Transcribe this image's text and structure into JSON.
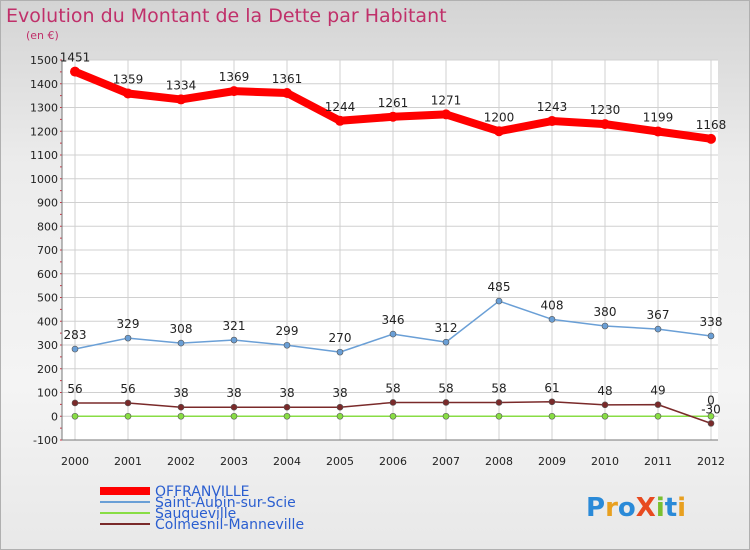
{
  "chart_data": {
    "type": "line",
    "title": "Evolution du Montant de la Dette par Habitant",
    "subtitle": "(en €)",
    "x": [
      "2000",
      "2001",
      "2002",
      "2003",
      "2004",
      "2005",
      "2006",
      "2007",
      "2008",
      "2009",
      "2010",
      "2011",
      "2012"
    ],
    "ylim": [
      -100,
      1500
    ],
    "yticks": [
      -100,
      0,
      100,
      200,
      300,
      400,
      500,
      600,
      700,
      800,
      900,
      1000,
      1100,
      1200,
      1300,
      1400,
      1500
    ],
    "grid": true,
    "legend_position": "bottom-left",
    "series": [
      {
        "name": "OFFRANVILLE",
        "values": [
          1451,
          1359,
          1334,
          1369,
          1361,
          1244,
          1261,
          1271,
          1200,
          1243,
          1230,
          1199,
          1168
        ],
        "labels": [
          "1451",
          "1359",
          "1334",
          "1369",
          "1361",
          "1244",
          "1261",
          "1271",
          "1200",
          "1243",
          "1230",
          "1199",
          "1168"
        ],
        "color": "#ff0000"
      },
      {
        "name": "Saint-Aubin-sur-Scie",
        "values": [
          283,
          329,
          308,
          321,
          299,
          270,
          346,
          312,
          485,
          408,
          380,
          367,
          338
        ],
        "labels": [
          "283",
          "329",
          "308",
          "321",
          "299",
          "270",
          "346",
          "312",
          "485",
          "408",
          "380",
          "367",
          "338"
        ],
        "color": "#6a9fd6"
      },
      {
        "name": "Sauqueville",
        "values": [
          0,
          0,
          0,
          0,
          0,
          0,
          0,
          0,
          0,
          0,
          0,
          0,
          0
        ],
        "labels": [
          "0",
          "0",
          "0",
          "0",
          "0",
          "0",
          "0",
          "0",
          "0",
          "0",
          "0",
          "0",
          "0"
        ],
        "color": "#88dd44"
      },
      {
        "name": "Colmesnil-Manneville",
        "values": [
          56,
          56,
          38,
          38,
          38,
          38,
          58,
          58,
          58,
          61,
          48,
          49,
          -30
        ],
        "labels": [
          "56",
          "56",
          "38",
          "38",
          "38",
          "38",
          "58",
          "58",
          "58",
          "61",
          "48",
          "49",
          "-30"
        ],
        "color": "#7a2a2a"
      }
    ]
  },
  "logo": {
    "text": "ProXiti"
  }
}
